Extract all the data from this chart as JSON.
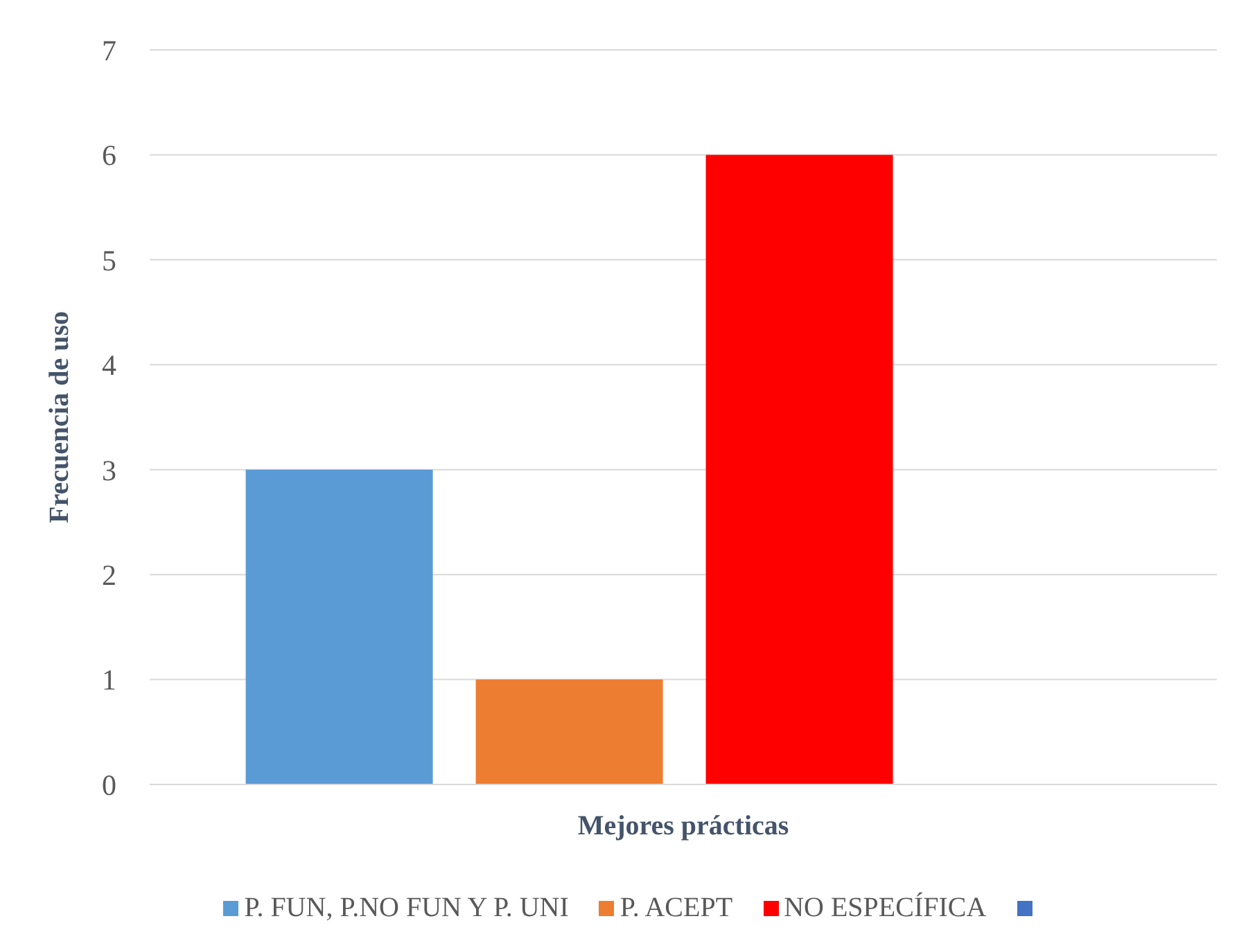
{
  "chart_data": {
    "type": "bar",
    "categories": [
      null
    ],
    "xlabel": "Mejores prácticas",
    "ylabel": "Frecuencia de uso",
    "ylim": [
      0,
      7
    ],
    "yticks": [
      0,
      1,
      2,
      3,
      4,
      5,
      6,
      7
    ],
    "grid": "y",
    "legend": "bottom",
    "series": [
      {
        "name": "P. FUN, P.NO FUN Y P. UNI",
        "color": "#5b9bd5",
        "values": [
          3
        ]
      },
      {
        "name": "P. ACEPT",
        "color": "#ed7d31",
        "values": [
          1
        ]
      },
      {
        "name": "NO ESPECÍFICA",
        "color": "#ff0000",
        "values": [
          6
        ]
      },
      {
        "color": "#4472c4",
        "values": [
          null
        ]
      }
    ]
  }
}
